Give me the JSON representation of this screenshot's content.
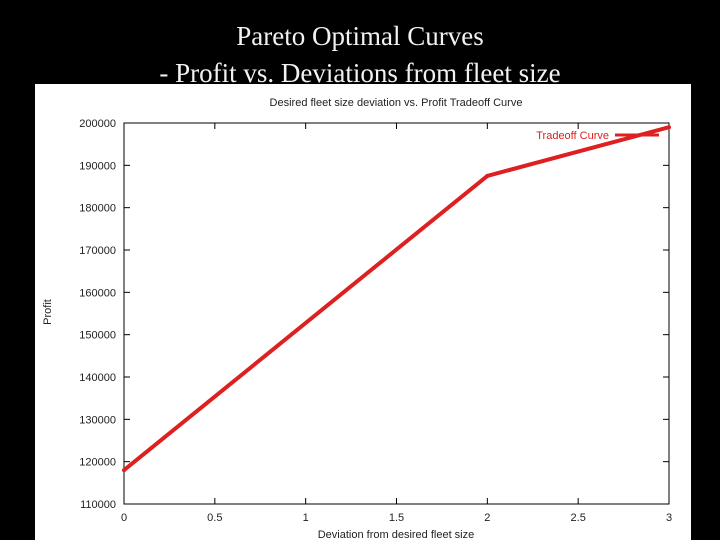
{
  "slide": {
    "title_line1": "Pareto Optimal Curves",
    "title_line2": "- Profit vs. Deviations from fleet size"
  },
  "colors": {
    "background": "#000000",
    "plot_background": "#ffffff",
    "series": "#dd2020",
    "axis": "#000000",
    "grid": "#cccccc"
  },
  "chart_data": {
    "type": "line",
    "title": "Desired fleet size deviation vs. Profit Tradeoff Curve",
    "xlabel": "Deviation from desired fleet size",
    "ylabel": "Profit",
    "xlim": [
      0,
      3
    ],
    "ylim": [
      110000,
      200000
    ],
    "x_ticks": [
      {
        "value": 0,
        "label": "0"
      },
      {
        "value": 0.5,
        "label": "0.5"
      },
      {
        "value": 1,
        "label": "1"
      },
      {
        "value": 1.5,
        "label": "1.5"
      },
      {
        "value": 2,
        "label": "2"
      },
      {
        "value": 2.5,
        "label": "2.5"
      },
      {
        "value": 3,
        "label": "3"
      }
    ],
    "y_ticks": [
      {
        "value": 110000,
        "label": "110000"
      },
      {
        "value": 120000,
        "label": "120000"
      },
      {
        "value": 130000,
        "label": "130000"
      },
      {
        "value": 140000,
        "label": "140000"
      },
      {
        "value": 150000,
        "label": "150000"
      },
      {
        "value": 160000,
        "label": "160000"
      },
      {
        "value": 170000,
        "label": "170000"
      },
      {
        "value": 180000,
        "label": "180000"
      },
      {
        "value": 190000,
        "label": "190000"
      },
      {
        "value": 200000,
        "label": "200000"
      }
    ],
    "grid": false,
    "legend_position": "top-right",
    "series": [
      {
        "name": "Tradeoff Curve",
        "color": "#dd2020",
        "points": [
          {
            "x": 0,
            "y": 118000
          },
          {
            "x": 2,
            "y": 187500
          },
          {
            "x": 3,
            "y": 199000
          }
        ]
      }
    ]
  }
}
